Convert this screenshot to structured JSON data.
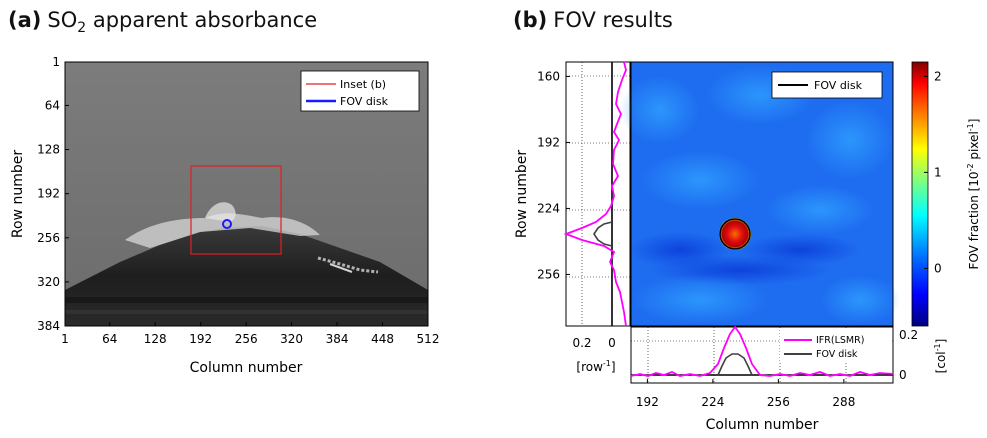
{
  "panel_a": {
    "label": "(a)",
    "title_pre": "SO",
    "title_sub": "2",
    "title_post": " apparent absorbance",
    "xlabel": "Column number",
    "ylabel": "Row number",
    "xticks": [
      "1",
      "64",
      "128",
      "192",
      "256",
      "320",
      "384",
      "448",
      "512"
    ],
    "yticks": [
      "1",
      "64",
      "128",
      "192",
      "256",
      "320",
      "384"
    ],
    "legend": [
      {
        "label": "Inset (b)",
        "color": "#e02020"
      },
      {
        "label": "FOV disk",
        "color": "#1a1aff"
      }
    ]
  },
  "panel_b": {
    "label": "(b)",
    "title": "FOV results",
    "xlabel": "Column number",
    "ylabel": "Row number",
    "xticks": [
      "192",
      "224",
      "256",
      "288"
    ],
    "yticks": [
      "160",
      "192",
      "224",
      "256"
    ],
    "legend": "FOV disk",
    "left_profile_ticks": [
      "0.2",
      "0"
    ],
    "left_profile_unit": "[row",
    "unit_sup": "-1",
    "unit_close": "]",
    "bottom_profile_ticks": [
      "0.2",
      "0"
    ],
    "bottom_profile_unit": "[col",
    "bottom_legend": [
      {
        "label": "IFR(LSMR)",
        "color": "#ff00ff"
      },
      {
        "label": "FOV disk",
        "color": "#404040"
      }
    ]
  },
  "colorbar": {
    "label_pre": "FOV fraction [10",
    "sup1": "-2",
    "label_mid": " pixel",
    "sup2": "-1",
    "label_post": "]",
    "ticks": [
      "2",
      "1",
      "0"
    ],
    "colors": [
      "#00007f",
      "#0000ff",
      "#007fff",
      "#00ffff",
      "#7fff7f",
      "#ffff00",
      "#ff7f00",
      "#ff0000",
      "#7f0000"
    ]
  }
}
